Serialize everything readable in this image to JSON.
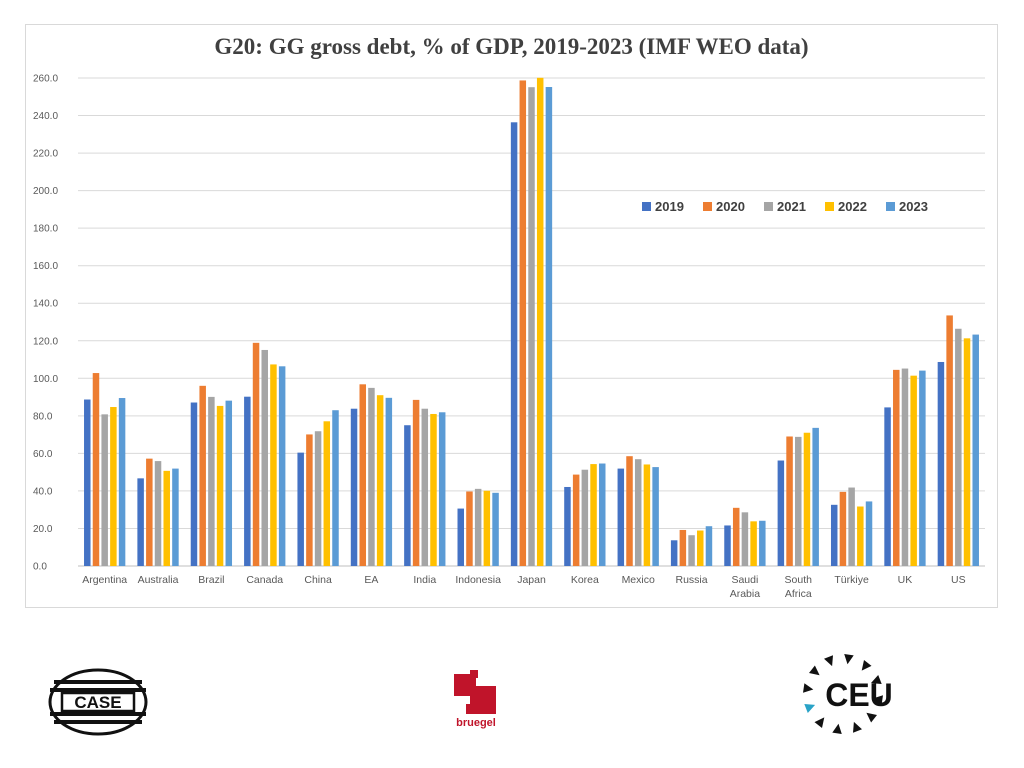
{
  "page": {
    "title": "G20: GG gross debt, % of GDP, 2019-2023 (IMF WEO data)"
  },
  "chart_data": {
    "type": "bar",
    "title": "G20: GG gross debt, % of GDP, 2019-2023 (IMF WEO data)",
    "xlabel": "",
    "ylabel": "",
    "ylim": [
      0,
      260
    ],
    "yticks": [
      "0.0",
      "20.0",
      "40.0",
      "60.0",
      "80.0",
      "100.0",
      "120.0",
      "140.0",
      "160.0",
      "180.0",
      "200.0",
      "220.0",
      "240.0",
      "260.0"
    ],
    "grid": true,
    "legend_position": "upper-right",
    "categories": [
      "Argentina",
      "Australia",
      "Brazil",
      "Canada",
      "China",
      "EA",
      "India",
      "Indonesia",
      "Japan",
      "Korea",
      "Mexico",
      "Russia",
      "Saudi Arabia",
      "South Africa",
      "Türkiye",
      "UK",
      "US"
    ],
    "category_lines": [
      [
        "Argentina"
      ],
      [
        "Australia"
      ],
      [
        "Brazil"
      ],
      [
        "Canada"
      ],
      [
        "China"
      ],
      [
        "EA"
      ],
      [
        "India"
      ],
      [
        "Indonesia"
      ],
      [
        "Japan"
      ],
      [
        "Korea"
      ],
      [
        "Mexico"
      ],
      [
        "Russia"
      ],
      [
        "Saudi",
        "Arabia"
      ],
      [
        "South",
        "Africa"
      ],
      [
        "Türkiye"
      ],
      [
        "UK"
      ],
      [
        "US"
      ]
    ],
    "series": [
      {
        "name": "2019",
        "color": "#4472C4",
        "values": [
          88.7,
          46.7,
          87.1,
          90.2,
          60.4,
          83.8,
          75.0,
          30.6,
          236.4,
          42.1,
          51.9,
          13.7,
          21.6,
          56.2,
          32.6,
          84.5,
          108.7
        ]
      },
      {
        "name": "2020",
        "color": "#ED7D31",
        "values": [
          102.8,
          57.2,
          96.0,
          118.9,
          70.1,
          96.8,
          88.5,
          39.7,
          258.7,
          48.7,
          58.5,
          19.2,
          31.0,
          69.0,
          39.5,
          104.5,
          133.5
        ]
      },
      {
        "name": "2021",
        "color": "#A5A5A5",
        "values": [
          80.8,
          55.9,
          90.1,
          115.1,
          71.8,
          94.9,
          83.8,
          41.1,
          255.1,
          51.3,
          56.9,
          16.4,
          28.6,
          68.8,
          41.8,
          105.2,
          126.4
        ]
      },
      {
        "name": "2022",
        "color": "#FFC000",
        "values": [
          84.7,
          50.7,
          85.3,
          107.4,
          77.1,
          91.0,
          81.0,
          40.1,
          260.1,
          54.3,
          54.1,
          18.9,
          23.8,
          71.0,
          31.7,
          101.4,
          121.3
        ]
      },
      {
        "name": "2023",
        "color": "#5B9BD5",
        "values": [
          89.5,
          51.9,
          88.1,
          106.4,
          83.0,
          89.6,
          81.9,
          39.0,
          255.2,
          54.6,
          52.7,
          21.2,
          24.1,
          73.6,
          34.4,
          104.1,
          123.3
        ]
      }
    ]
  },
  "logos": {
    "case": "CASE",
    "bruegel": "bruegel",
    "ceu": "CEU"
  }
}
